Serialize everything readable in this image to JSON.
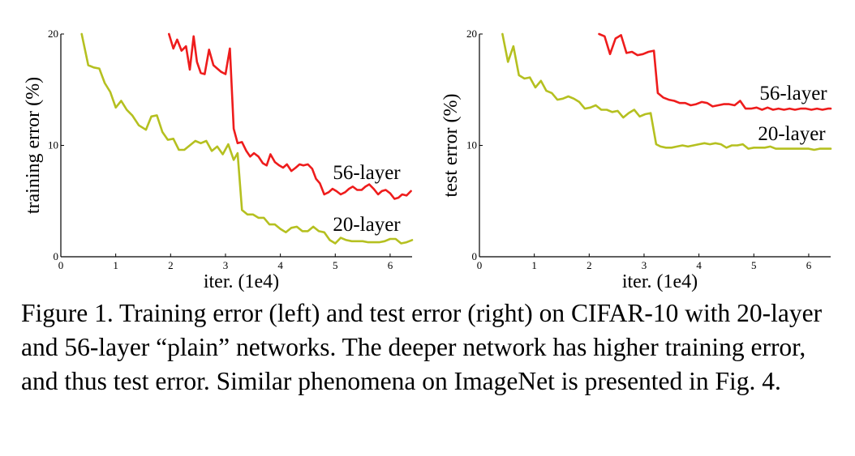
{
  "chart_data": [
    {
      "type": "line",
      "title": "",
      "xlabel": "iter. (1e4)",
      "ylabel": "training error (%)",
      "xlim": [
        0,
        6.4
      ],
      "ylim": [
        0,
        20
      ],
      "xticks": [
        0,
        1,
        2,
        3,
        4,
        5,
        6
      ],
      "yticks": [
        0,
        10,
        20
      ],
      "series": [
        {
          "name": "56-layer",
          "color": "#ee1c1c",
          "x": [
            1.97,
            2.05,
            2.12,
            2.2,
            2.28,
            2.35,
            2.42,
            2.48,
            2.55,
            2.62,
            2.7,
            2.78,
            2.85,
            2.92,
            3.0,
            3.08,
            3.15,
            3.22,
            3.3,
            3.38,
            3.45,
            3.52,
            3.6,
            3.68,
            3.75,
            3.82,
            3.9,
            3.98,
            4.05,
            4.12,
            4.2,
            4.28,
            4.35,
            4.42,
            4.5,
            4.58,
            4.65,
            4.72,
            4.8,
            4.88,
            4.95,
            5.02,
            5.1,
            5.18,
            5.25,
            5.32,
            5.4,
            5.48,
            5.55,
            5.62,
            5.7,
            5.78,
            5.85,
            5.92,
            6.0,
            6.08,
            6.15,
            6.22,
            6.3,
            6.38
          ],
          "y": [
            20,
            18.7,
            19.5,
            18.5,
            18.9,
            16.8,
            19.8,
            17.5,
            16.5,
            16.4,
            18.6,
            17.2,
            16.9,
            16.6,
            16.4,
            18.7,
            11.5,
            10.2,
            10.3,
            9.5,
            9.0,
            9.3,
            9.0,
            8.4,
            8.2,
            9.2,
            8.5,
            8.2,
            8.0,
            8.3,
            7.7,
            8.0,
            8.3,
            8.2,
            8.3,
            7.9,
            7.0,
            6.6,
            5.6,
            5.8,
            6.1,
            5.9,
            5.6,
            5.8,
            6.1,
            6.3,
            6.0,
            6.0,
            6.3,
            6.5,
            6.1,
            5.6,
            5.9,
            6.0,
            5.7,
            5.2,
            5.3,
            5.6,
            5.5,
            5.9
          ]
        },
        {
          "name": "20-layer",
          "color": "#b5c020",
          "x": [
            0.38,
            0.5,
            0.6,
            0.7,
            0.8,
            0.9,
            1.0,
            1.1,
            1.2,
            1.3,
            1.42,
            1.55,
            1.65,
            1.75,
            1.85,
            1.95,
            2.05,
            2.15,
            2.25,
            2.35,
            2.45,
            2.55,
            2.65,
            2.75,
            2.85,
            2.95,
            3.05,
            3.15,
            3.22,
            3.3,
            3.4,
            3.5,
            3.6,
            3.7,
            3.8,
            3.9,
            4.0,
            4.1,
            4.2,
            4.3,
            4.4,
            4.5,
            4.6,
            4.7,
            4.8,
            4.9,
            5.0,
            5.1,
            5.2,
            5.3,
            5.4,
            5.5,
            5.6,
            5.7,
            5.8,
            5.9,
            6.0,
            6.1,
            6.2,
            6.3,
            6.4
          ],
          "y": [
            20,
            17.2,
            17.0,
            16.9,
            15.6,
            14.8,
            13.4,
            14.0,
            13.2,
            12.7,
            11.8,
            11.4,
            12.6,
            12.7,
            11.2,
            10.5,
            10.6,
            9.6,
            9.6,
            10.0,
            10.4,
            10.2,
            10.4,
            9.5,
            9.9,
            9.2,
            10.1,
            8.7,
            9.3,
            4.2,
            3.8,
            3.8,
            3.5,
            3.5,
            2.9,
            2.9,
            2.5,
            2.2,
            2.6,
            2.7,
            2.3,
            2.3,
            2.7,
            2.3,
            2.2,
            1.5,
            1.2,
            1.7,
            1.5,
            1.4,
            1.4,
            1.4,
            1.3,
            1.3,
            1.3,
            1.4,
            1.6,
            1.6,
            1.2,
            1.3,
            1.5
          ]
        }
      ]
    },
    {
      "type": "line",
      "title": "",
      "xlabel": "iter. (1e4)",
      "ylabel": "test error (%)",
      "xlim": [
        0,
        6.4
      ],
      "ylim": [
        0,
        20
      ],
      "xticks": [
        0,
        1,
        2,
        3,
        4,
        5,
        6
      ],
      "yticks": [
        0,
        10,
        20
      ],
      "series": [
        {
          "name": "56-layer",
          "color": "#ee1c1c",
          "x": [
            2.18,
            2.28,
            2.38,
            2.48,
            2.58,
            2.68,
            2.78,
            2.88,
            2.98,
            3.08,
            3.18,
            3.25,
            3.35,
            3.45,
            3.55,
            3.65,
            3.75,
            3.85,
            3.95,
            4.05,
            4.15,
            4.25,
            4.35,
            4.45,
            4.55,
            4.65,
            4.75,
            4.85,
            4.95,
            5.05,
            5.15,
            5.25,
            5.35,
            5.45,
            5.55,
            5.65,
            5.75,
            5.85,
            5.95,
            6.05,
            6.15,
            6.25,
            6.35,
            6.4
          ],
          "y": [
            20,
            19.8,
            18.2,
            19.6,
            19.9,
            18.3,
            18.4,
            18.1,
            18.2,
            18.4,
            18.5,
            14.7,
            14.3,
            14.1,
            14.0,
            13.8,
            13.8,
            13.6,
            13.7,
            13.9,
            13.8,
            13.5,
            13.6,
            13.7,
            13.7,
            13.6,
            14.0,
            13.3,
            13.3,
            13.4,
            13.2,
            13.4,
            13.2,
            13.3,
            13.2,
            13.3,
            13.2,
            13.3,
            13.3,
            13.2,
            13.3,
            13.2,
            13.3,
            13.3
          ]
        },
        {
          "name": "20-layer",
          "color": "#b5c020",
          "x": [
            0.42,
            0.52,
            0.62,
            0.72,
            0.82,
            0.92,
            1.02,
            1.12,
            1.22,
            1.32,
            1.42,
            1.52,
            1.62,
            1.72,
            1.82,
            1.92,
            2.02,
            2.12,
            2.22,
            2.32,
            2.42,
            2.52,
            2.62,
            2.72,
            2.82,
            2.92,
            3.02,
            3.12,
            3.22,
            3.3,
            3.4,
            3.5,
            3.6,
            3.7,
            3.8,
            3.9,
            4.0,
            4.1,
            4.2,
            4.3,
            4.4,
            4.5,
            4.6,
            4.7,
            4.8,
            4.9,
            5.0,
            5.1,
            5.2,
            5.3,
            5.4,
            5.5,
            5.6,
            5.7,
            5.8,
            5.9,
            6.0,
            6.1,
            6.2,
            6.3,
            6.4
          ],
          "y": [
            20,
            17.5,
            18.9,
            16.3,
            16.0,
            16.1,
            15.2,
            15.8,
            14.9,
            14.7,
            14.1,
            14.2,
            14.4,
            14.2,
            13.9,
            13.3,
            13.4,
            13.6,
            13.2,
            13.2,
            13.0,
            13.1,
            12.5,
            12.9,
            13.2,
            12.6,
            12.8,
            12.9,
            10.1,
            9.9,
            9.8,
            9.8,
            9.9,
            10.0,
            9.9,
            10.0,
            10.1,
            10.2,
            10.1,
            10.2,
            10.1,
            9.8,
            10.0,
            10.0,
            10.1,
            9.7,
            9.8,
            9.8,
            9.8,
            9.9,
            9.7,
            9.7,
            9.7,
            9.7,
            9.7,
            9.7,
            9.7,
            9.6,
            9.7,
            9.7,
            9.7
          ]
        }
      ]
    }
  ],
  "caption": "Figure 1. Training error (left) and test error (right) on CIFAR-10 with 20-layer and 56-layer “plain” networks. The deeper network has higher training error, and thus test error. Similar phenomena on ImageNet is presented in Fig. 4."
}
